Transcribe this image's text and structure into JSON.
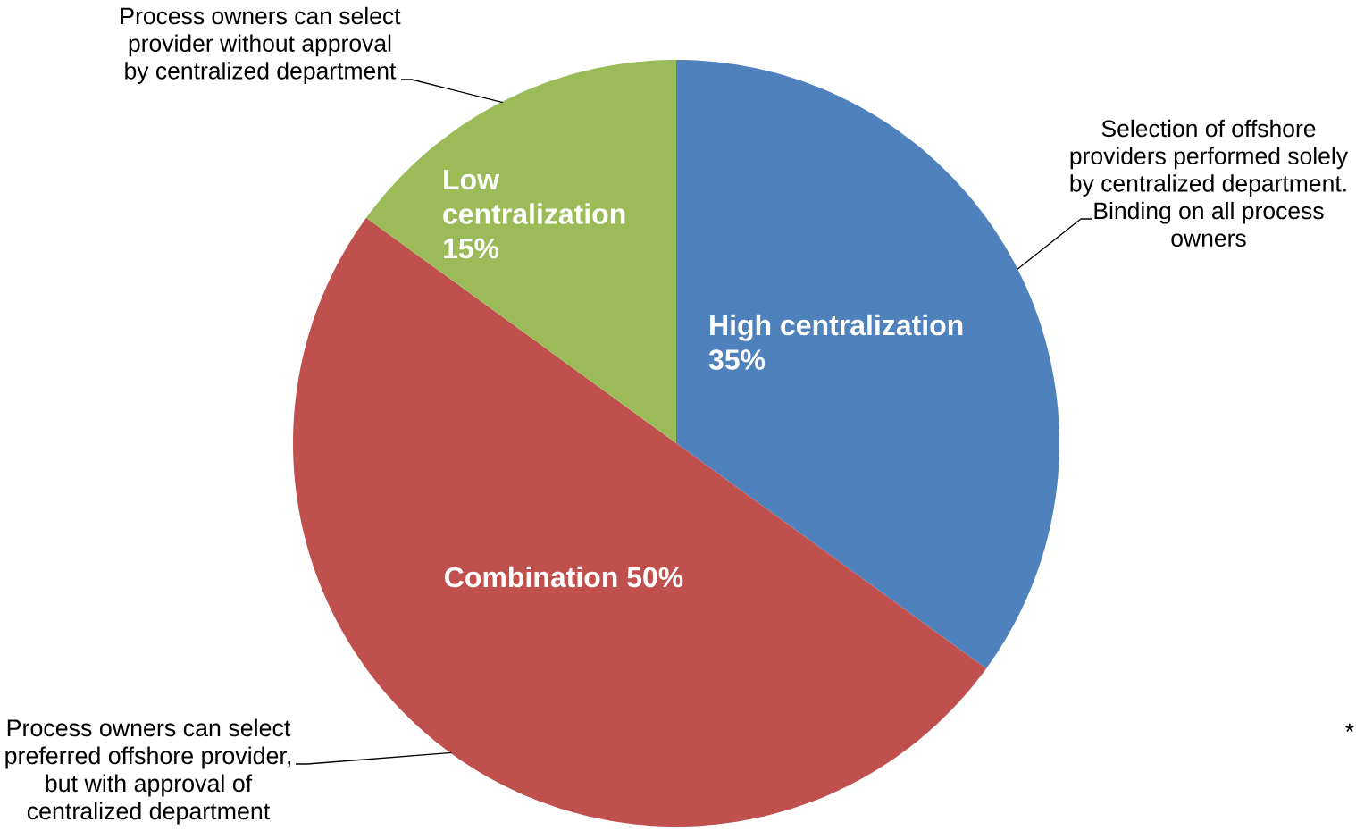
{
  "chart_data": {
    "type": "pie",
    "categories": [
      "High centralization",
      "Combination",
      "Low centralization"
    ],
    "values": [
      35,
      50,
      15
    ],
    "colors": [
      "#4f81bd",
      "#c0504d",
      "#9bbb59"
    ],
    "value_labels": [
      "35%",
      "50%",
      "15%"
    ],
    "annotations": [
      "Process owners can select provider without approval by centralized department",
      "Selection of offshore providers performed solely by centralized department. Binding on all process owners",
      "Process owners can select preferred offshore provider, but with approval of centralized department",
      "*"
    ]
  }
}
